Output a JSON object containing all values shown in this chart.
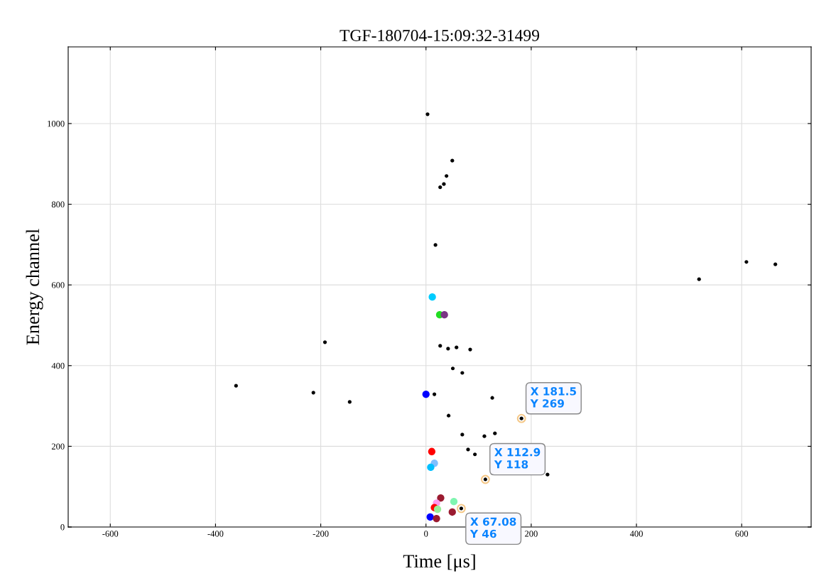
{
  "chart_data": {
    "type": "scatter",
    "title": "TGF-180704-15:09:32-31499",
    "xlabel": "Time [μs]",
    "ylabel": "Energy channel",
    "xlim": [
      -680,
      732
    ],
    "ylim": [
      0,
      1190
    ],
    "xticks": [
      -600,
      -400,
      -200,
      0,
      200,
      400,
      600
    ],
    "yticks": [
      0,
      200,
      400,
      600,
      800,
      1000
    ],
    "grid": true,
    "marker": "circle",
    "series": [
      {
        "color": "#000000",
        "x": [
          3,
          50,
          39,
          34,
          27,
          18,
          609,
          664,
          519,
          -192,
          27,
          42,
          58,
          84,
          51,
          69,
          -361,
          -214,
          16,
          126,
          -145,
          43,
          181.5,
          69,
          111,
          131,
          80,
          93,
          231,
          112.9,
          67.08
        ],
        "values": [
          1023,
          908,
          870,
          850,
          842,
          699,
          657,
          651,
          614,
          458,
          449,
          442,
          445,
          440,
          393,
          382,
          350,
          333,
          329,
          320,
          310,
          276,
          269,
          229,
          225,
          232,
          192,
          180,
          130,
          118,
          46
        ]
      },
      {
        "colors": [
          "#00ccff",
          "#22dd22",
          "#7b3585",
          "#0000ff",
          "#ff0000",
          "#80bfff",
          "#00bfff",
          "#9b1b30",
          "#7ff5b0",
          "#ff99ee",
          "#ff0000",
          "#99ee99",
          "#0000ff",
          "#9b1b30",
          "#9b1b30"
        ],
        "x": [
          12,
          26,
          35,
          0,
          11,
          16,
          9,
          28,
          53,
          20,
          16,
          22,
          8,
          20,
          50
        ],
        "values": [
          570,
          526,
          526,
          329,
          187,
          158,
          148,
          72,
          63,
          59,
          48,
          44,
          25,
          21,
          37
        ]
      }
    ],
    "annotations": [
      {
        "text": "X 181.5\nY 269",
        "x": 181.5,
        "y": 269
      },
      {
        "text": "X 112.9\nY 118",
        "x": 112.9,
        "y": 118
      },
      {
        "text": "X 67.08\nY 46",
        "x": 67.08,
        "y": 46
      }
    ]
  }
}
